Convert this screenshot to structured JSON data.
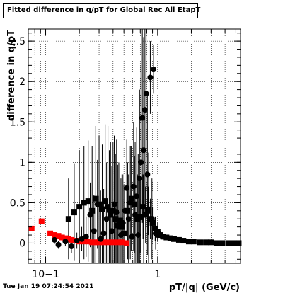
{
  "title": "Fitted difference in q/pT for Global Rec All EtapT",
  "timestamp": "Tue Jan 19 07:24:54 2021",
  "chart_data": {
    "type": "scatter",
    "title": "Fitted difference in q/pT for Global Rec All EtapT",
    "xlabel": "pT/|q| (GeV/c)",
    "ylabel": "difference in q/pT",
    "xscale": "log",
    "xlim": [
      0.07,
      5.5
    ],
    "ylim": [
      -0.25,
      2.65
    ],
    "x_ticks": [
      {
        "v": 0.1,
        "label": "10−1"
      },
      {
        "v": 1,
        "label": "1"
      }
    ],
    "y_ticks": [
      {
        "v": 0,
        "label": "0"
      },
      {
        "v": 0.5,
        "label": "0.5"
      },
      {
        "v": 1,
        "label": "1"
      },
      {
        "v": 1.5,
        "label": "1.5"
      },
      {
        "v": 2,
        "label": "2"
      },
      {
        "v": 2.5,
        "label": "2.5"
      }
    ],
    "grid": true,
    "series": [
      {
        "marker": "square",
        "color": "#ff0000",
        "points": [
          [
            0.075,
            0.18,
            0.02
          ],
          [
            0.092,
            0.27,
            0.03
          ],
          [
            0.11,
            0.12,
            0.03
          ],
          [
            0.12,
            0.1,
            0.03
          ],
          [
            0.13,
            0.09,
            0.03
          ],
          [
            0.14,
            0.07,
            0.03
          ],
          [
            0.15,
            0.06,
            0.03
          ],
          [
            0.16,
            0.05,
            0.03
          ],
          [
            0.17,
            0.04,
            0.03
          ],
          [
            0.18,
            0.03,
            0.03
          ],
          [
            0.19,
            0.03,
            0.03
          ],
          [
            0.2,
            0.02,
            0.03
          ],
          [
            0.22,
            0.02,
            0.03
          ],
          [
            0.24,
            0.02,
            0.03
          ],
          [
            0.26,
            0.01,
            0.03
          ],
          [
            0.28,
            0.01,
            0.03
          ],
          [
            0.3,
            0.01,
            0.03
          ],
          [
            0.33,
            0.01,
            0.03
          ],
          [
            0.36,
            0.01,
            0.03
          ],
          [
            0.4,
            0.01,
            0.03
          ],
          [
            0.44,
            0.01,
            0.03
          ],
          [
            0.48,
            0.01,
            0.03
          ],
          [
            0.53,
            0.0,
            0.03
          ]
        ]
      },
      {
        "marker": "circle",
        "color": "#000000",
        "points": [
          [
            0.12,
            0.04,
            0.05
          ],
          [
            0.13,
            -0.02,
            0.05
          ],
          [
            0.15,
            0.02,
            0.06
          ],
          [
            0.17,
            -0.04,
            0.08
          ],
          [
            0.19,
            0.03,
            0.1
          ],
          [
            0.21,
            0.05,
            0.15
          ],
          [
            0.23,
            0.08,
            0.25
          ],
          [
            0.25,
            0.35,
            0.4
          ],
          [
            0.27,
            0.15,
            0.45
          ],
          [
            0.29,
            0.48,
            0.55
          ],
          [
            0.31,
            0.05,
            0.6
          ],
          [
            0.33,
            0.12,
            0.55
          ],
          [
            0.35,
            0.3,
            0.7
          ],
          [
            0.37,
            0.4,
            0.75
          ],
          [
            0.39,
            0.15,
            0.8
          ],
          [
            0.41,
            0.48,
            0.85
          ],
          [
            0.43,
            0.38,
            0.9
          ],
          [
            0.45,
            0.2,
            0.8
          ],
          [
            0.47,
            0.1,
            0.7
          ],
          [
            0.49,
            0.25,
            0.6
          ],
          [
            0.51,
            0.4,
            0.65
          ],
          [
            0.53,
            0.68,
            0.6
          ],
          [
            0.55,
            0.3,
            0.55
          ],
          [
            0.57,
            0.5,
            0.7
          ],
          [
            0.59,
            0.08,
            0.65
          ],
          [
            0.61,
            0.7,
            0.8
          ],
          [
            0.63,
            0.35,
            0.9
          ],
          [
            0.65,
            0.58,
            0.85
          ],
          [
            0.67,
            0.1,
            1.0
          ],
          [
            0.69,
            0.8,
            1.1
          ],
          [
            0.71,
            1.0,
            1.2
          ],
          [
            0.73,
            1.55,
            1.3
          ],
          [
            0.75,
            1.15,
            1.4
          ],
          [
            0.77,
            1.65,
            1.3
          ],
          [
            0.79,
            1.85,
            1.2
          ],
          [
            0.81,
            0.85,
            1.0
          ],
          [
            0.83,
            0.42,
            0.7
          ],
          [
            0.86,
            2.05,
            0.45
          ],
          [
            0.89,
            0.3,
            0.5
          ],
          [
            0.92,
            2.15,
            0.3
          ],
          [
            0.96,
            0.12,
            0.2
          ],
          [
            1.0,
            0.1,
            0.08
          ]
        ]
      },
      {
        "marker": "square",
        "color": "#000000",
        "points": [
          [
            0.16,
            0.3,
            0.5
          ],
          [
            0.18,
            0.38,
            0.6
          ],
          [
            0.2,
            0.45,
            0.7
          ],
          [
            0.22,
            0.5,
            0.7
          ],
          [
            0.24,
            0.52,
            0.75
          ],
          [
            0.26,
            0.4,
            0.8
          ],
          [
            0.28,
            0.55,
            0.9
          ],
          [
            0.3,
            0.48,
            0.85
          ],
          [
            0.32,
            0.42,
            0.8
          ],
          [
            0.34,
            0.52,
            0.95
          ],
          [
            0.36,
            0.45,
            1.0
          ],
          [
            0.38,
            0.35,
            0.9
          ],
          [
            0.4,
            0.4,
            0.85
          ],
          [
            0.42,
            0.3,
            0.8
          ],
          [
            0.44,
            0.22,
            0.75
          ],
          [
            0.46,
            0.28,
            0.7
          ],
          [
            0.48,
            0.2,
            0.65
          ],
          [
            0.5,
            0.12,
            0.6
          ],
          [
            0.54,
            0.4,
            0.6
          ],
          [
            0.58,
            0.55,
            0.65
          ],
          [
            0.62,
            0.48,
            0.6
          ],
          [
            0.66,
            0.3,
            0.55
          ],
          [
            0.7,
            0.32,
            0.45
          ],
          [
            0.74,
            0.45,
            0.4
          ],
          [
            0.78,
            0.35,
            0.35
          ],
          [
            0.82,
            0.4,
            0.3
          ],
          [
            0.86,
            0.3,
            0.25
          ],
          [
            0.9,
            0.25,
            0.2
          ],
          [
            0.95,
            0.18,
            0.15
          ],
          [
            1.0,
            0.14,
            0.12
          ],
          [
            1.06,
            0.1,
            0.05
          ],
          [
            1.12,
            0.08,
            0.03
          ],
          [
            1.2,
            0.07,
            0.02
          ],
          [
            1.3,
            0.06,
            0.02
          ],
          [
            1.4,
            0.05,
            0.02
          ],
          [
            1.55,
            0.04,
            0.02
          ],
          [
            1.7,
            0.03,
            0.02
          ],
          [
            1.9,
            0.02,
            0.02
          ],
          [
            2.1,
            0.02,
            0.02
          ],
          [
            2.4,
            0.01,
            0.02
          ],
          [
            2.7,
            0.01,
            0.02
          ],
          [
            3.0,
            0.01,
            0.02
          ],
          [
            3.4,
            0.0,
            0.02
          ],
          [
            3.8,
            0.0,
            0.02
          ],
          [
            4.3,
            0.0,
            0.02
          ],
          [
            4.8,
            0.0,
            0.02
          ],
          [
            5.3,
            0.0,
            0.02
          ]
        ]
      }
    ]
  }
}
